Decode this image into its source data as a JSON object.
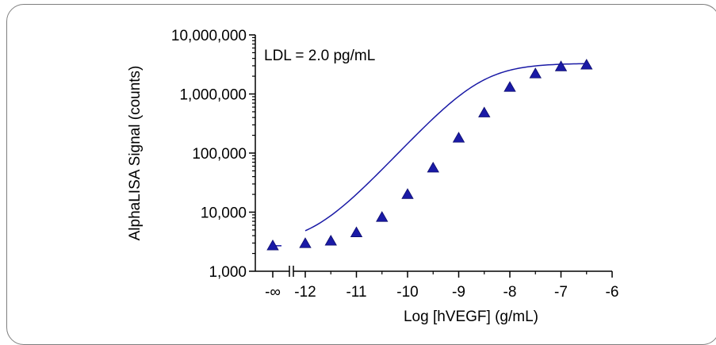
{
  "chart_data": {
    "type": "scatter",
    "title": "",
    "xlabel": "Log [hVEGF] (g/mL)",
    "ylabel": "AlphaLISA Signal (counts)",
    "annotation": "LDL = 2.0 pg/mL",
    "x_scale": "linear",
    "y_scale": "log",
    "xlim": [
      -12,
      -6
    ],
    "ylim": [
      1000,
      10000000
    ],
    "x_break": true,
    "x_ticks": [
      "-∞",
      "-12",
      "-11",
      "-10",
      "-9",
      "-8",
      "-7",
      "-6"
    ],
    "y_ticks": [
      "1,000",
      "10,000",
      "100,000",
      "1,000,000",
      "10,000,000"
    ],
    "y_tick_values": [
      1000,
      10000,
      100000,
      1000000,
      10000000
    ],
    "grid": false,
    "marker": "triangle",
    "series_color": "#1a1aa6",
    "blank_point": {
      "x": "-∞",
      "y": 2700
    },
    "points": [
      {
        "x": -12.0,
        "y": 2950
      },
      {
        "x": -11.5,
        "y": 3250
      },
      {
        "x": -11.0,
        "y": 4500
      },
      {
        "x": -10.5,
        "y": 8200
      },
      {
        "x": -10.0,
        "y": 20000
      },
      {
        "x": -9.5,
        "y": 56000
      },
      {
        "x": -9.0,
        "y": 180000
      },
      {
        "x": -8.5,
        "y": 480000
      },
      {
        "x": -8.0,
        "y": 1300000
      },
      {
        "x": -7.5,
        "y": 2200000
      },
      {
        "x": -7.0,
        "y": 2900000
      },
      {
        "x": -6.5,
        "y": 3100000
      }
    ]
  }
}
